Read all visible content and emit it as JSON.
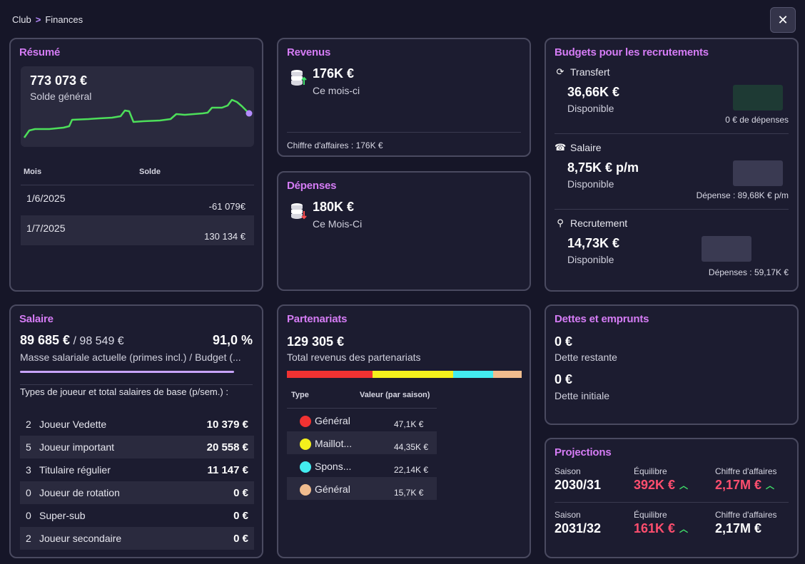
{
  "breadcrumb": {
    "root": "Club",
    "current": "Finances"
  },
  "close_label": "✕",
  "resume": {
    "title": "Résumé",
    "balance": "773 073 €",
    "balance_label": "Solde général",
    "table_head": {
      "month": "Mois",
      "solde": "Solde"
    },
    "rows": [
      {
        "month": "1/6/2025",
        "solde": "-61 079€"
      },
      {
        "month": "1/7/2025",
        "solde": "130 134 €"
      }
    ],
    "sparkline_color": "#4ddf5a",
    "sparkline_end_color": "#b48cff"
  },
  "revenus": {
    "title": "Revenus",
    "value": "176K €",
    "sub": "Ce mois-ci",
    "ca": "Chiffre d'affaires :  176K €",
    "icon": "coins-up-icon"
  },
  "depenses": {
    "title": "Dépenses",
    "value": "180K €",
    "sub": "Ce Mois-Ci",
    "icon": "coins-down-icon"
  },
  "budgets": {
    "title": "Budgets pour les recrutements",
    "items": [
      {
        "name": "Transfert",
        "icon": "refresh-icon",
        "glyph": "⟳",
        "value": "36,66K €",
        "sub": "Disponible",
        "note": "0 € de dépenses",
        "swatch": "#1e3a34"
      },
      {
        "name": "Salaire",
        "icon": "contract-icon",
        "glyph": "☎",
        "value": "8,75K € p/m",
        "sub": "Disponible",
        "note": "Dépense : 89,68K € p/m",
        "swatch": "#3a3a52"
      },
      {
        "name": "Recrutement",
        "icon": "search-icon",
        "glyph": "⚲",
        "value": "14,73K €",
        "sub": "Disponible",
        "note": "Dépenses : 59,17K €",
        "swatch": "#3a3a52"
      }
    ]
  },
  "salaire": {
    "title": "Salaire",
    "current": "89 685 €",
    "budget": " / 98 549 €",
    "percent": "91,0 %",
    "percent_fill": 0.91,
    "desc": "Masse salariale actuelle (primes incl.) / Budget (...",
    "types_label": "Types de joueur et total salaires de base (p/sem.) :",
    "rows": [
      {
        "n": "2",
        "label": "Joueur Vedette",
        "value": "10 379 €"
      },
      {
        "n": "5",
        "label": "Joueur important",
        "value": "20 558 €"
      },
      {
        "n": "3",
        "label": "Titulaire régulier",
        "value": "11 147 €"
      },
      {
        "n": "0",
        "label": "Joueur de rotation",
        "value": "0 €"
      },
      {
        "n": "0",
        "label": "Super-sub",
        "value": "0 €"
      },
      {
        "n": "2",
        "label": "Joueur secondaire",
        "value": "0 €"
      }
    ]
  },
  "partenariats": {
    "title": "Partenariats",
    "total": "129 305 €",
    "total_label": "Total revenus des partenariats",
    "table_head": {
      "type": "Type",
      "value": "Valeur (par saison)"
    },
    "rows": [
      {
        "label": "Général",
        "value": "47,1K €",
        "color": "#f03232",
        "share": 47.1
      },
      {
        "label": "Maillot...",
        "value": "44,35K €",
        "color": "#f4f01c",
        "share": 44.35
      },
      {
        "label": "Spons...",
        "value": "22,14K €",
        "color": "#43ecf0",
        "share": 22.14
      },
      {
        "label": "Général",
        "value": "15,7K €",
        "color": "#f0bc8e",
        "share": 15.7
      }
    ]
  },
  "dettes": {
    "title": "Dettes et emprunts",
    "remaining": "0 €",
    "remaining_label": "Dette restante",
    "initial": "0 €",
    "initial_label": "Dette initiale"
  },
  "projections": {
    "title": "Projections",
    "labels": {
      "season": "Saison",
      "equilibre": "Équilibre",
      "ca": "Chiffre d'affaires"
    },
    "rows": [
      {
        "season": "2030/31",
        "equilibre": "392K €",
        "equilibre_up": true,
        "ca": "2,17M €",
        "ca_neg": true,
        "ca_up": true
      },
      {
        "season": "2031/32",
        "equilibre": "161K €",
        "equilibre_up": true,
        "ca": "2,17M €",
        "ca_neg": false,
        "ca_up": false
      }
    ]
  }
}
